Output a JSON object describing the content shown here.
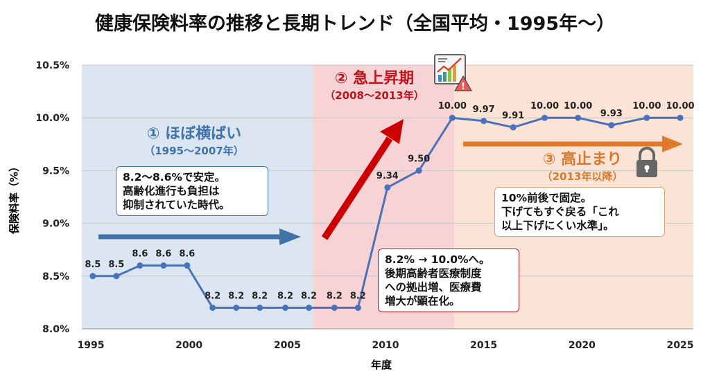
{
  "chart_data": {
    "type": "line",
    "title": "健康保険料率の推移と長期トレンド（全国平均・1995年〜）",
    "xlabel": "年度",
    "ylabel": "保険料率（%）",
    "xlim": [
      1995,
      2025
    ],
    "ylim": [
      8.0,
      10.5
    ],
    "xticks": [
      "1995",
      "2000",
      "2005",
      "2010",
      "2015",
      "2020",
      "2025"
    ],
    "yticks": [
      "8.0%",
      "8.5%",
      "9.0%",
      "9.5%",
      "10.0%",
      "10.5%"
    ],
    "grid": true,
    "series": [
      {
        "name": "保険料率",
        "color": "#4a72b8",
        "x": [
          1995.1,
          1996.3,
          1997.5,
          1998.7,
          1999.9,
          2001.2,
          2002.4,
          2003.6,
          2004.9,
          2006.1,
          2007.4,
          2008.6,
          2010.1,
          2011.7,
          2013.4,
          2015.0,
          2016.5,
          2018.1,
          2019.8,
          2021.5,
          2023.3,
          2025.0
        ],
        "values": [
          8.5,
          8.5,
          8.6,
          8.6,
          8.6,
          8.2,
          8.2,
          8.2,
          8.2,
          8.2,
          8.2,
          8.2,
          9.34,
          9.5,
          10.0,
          9.97,
          9.91,
          10.0,
          10.0,
          9.93,
          10.0,
          10.0
        ],
        "labels": [
          "8.5",
          "8.5",
          "8.6",
          "8.6",
          "8.6",
          "8.2",
          "8.2",
          "8.2",
          "8.2",
          "8.2",
          "8.2",
          "8.2",
          "9.34",
          "9.50",
          "10.00",
          "9.97",
          "9.91",
          "10.00",
          "10.00",
          "9.93",
          "10.00",
          "10.00"
        ]
      }
    ],
    "phases": [
      {
        "from": 1994.5,
        "to": 2006.3,
        "color": "#dce6f2",
        "title": "① ほぼ横ばい",
        "period": "（1995〜2007年）",
        "text_color": "#3f73a8",
        "note": [
          "8.2〜8.6%で安定。",
          "高齢化進行も負担は",
          "抑制されていた時代。"
        ]
      },
      {
        "from": 2006.3,
        "to": 2013.5,
        "color": "#f8d3d5",
        "title": "② 急上昇期",
        "period": "（2008〜2013年）",
        "text_color": "#c0141c",
        "note": [
          "8.2% → 10.0%へ。",
          "後期高齢者医療制度",
          "への拠出増、医療費",
          "増大が顕在化。"
        ]
      },
      {
        "from": 2013.5,
        "to": 2025.7,
        "color": "#fbe3d5",
        "title": "③ 高止まり",
        "period": "（2013年以降）",
        "text_color": "#d9792d",
        "note": [
          "10%前後で固定。",
          "下げてもすぐ戻る「これ",
          "以上下げにくい水準」。"
        ]
      }
    ],
    "icons": [
      "chart-warning-icon",
      "lock-icon"
    ],
    "legend": "none"
  }
}
